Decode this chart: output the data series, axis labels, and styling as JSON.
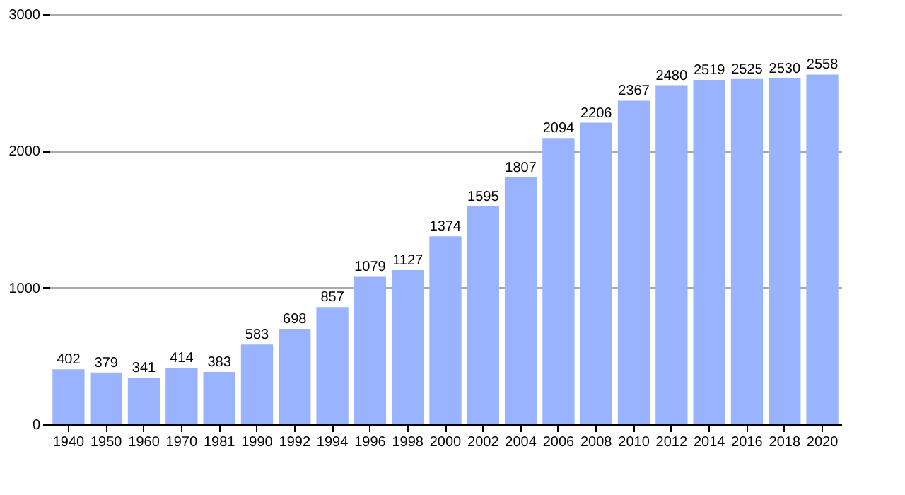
{
  "chart_data": {
    "type": "bar",
    "categories": [
      "1940",
      "1950",
      "1960",
      "1970",
      "1981",
      "1990",
      "1992",
      "1994",
      "1996",
      "1998",
      "2000",
      "2002",
      "2004",
      "2006",
      "2008",
      "2010",
      "2012",
      "2014",
      "2016",
      "2018",
      "2020"
    ],
    "values": [
      402,
      379,
      341,
      414,
      383,
      583,
      698,
      857,
      1079,
      1127,
      1374,
      1595,
      1807,
      2094,
      2206,
      2367,
      2480,
      2519,
      2525,
      2530,
      2558
    ],
    "color": "#99b3ff",
    "ylim": [
      0,
      3000
    ],
    "yticks": [
      0,
      1000,
      2000,
      3000
    ],
    "grid": "y",
    "data_labels": true
  }
}
